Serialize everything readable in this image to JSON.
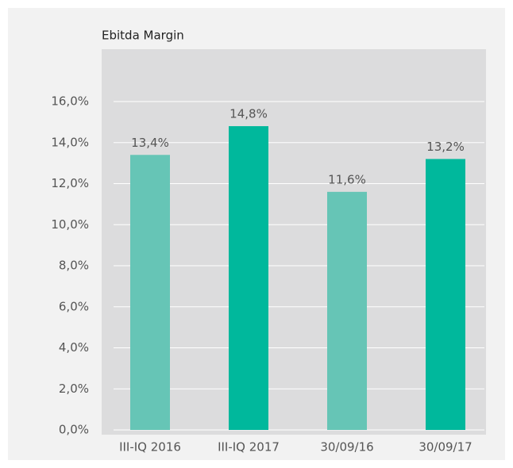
{
  "chart_data": {
    "type": "bar",
    "title": "Ebitda Margin",
    "categories": [
      "III-IQ 2016",
      "III-IQ 2017",
      "30/09/16",
      "30/09/17"
    ],
    "values": [
      13.4,
      14.8,
      11.6,
      13.2
    ],
    "value_labels": [
      "13,4%",
      "14,8%",
      "11,6%",
      "13,2%"
    ],
    "colors": [
      "#66c5b6",
      "#00b89c",
      "#66c5b6",
      "#00b89c"
    ],
    "ylim": [
      0,
      16
    ],
    "yticks": [
      {
        "value": 0,
        "label": "0,0%"
      },
      {
        "value": 2,
        "label": "2,0%"
      },
      {
        "value": 4,
        "label": "4,0%"
      },
      {
        "value": 6,
        "label": "6,0%"
      },
      {
        "value": 8,
        "label": "8,0%"
      },
      {
        "value": 10,
        "label": "10,0%"
      },
      {
        "value": 12,
        "label": "12,0%"
      },
      {
        "value": 14,
        "label": "14,0%"
      },
      {
        "value": 16,
        "label": "16,0%"
      }
    ],
    "grid": true
  }
}
